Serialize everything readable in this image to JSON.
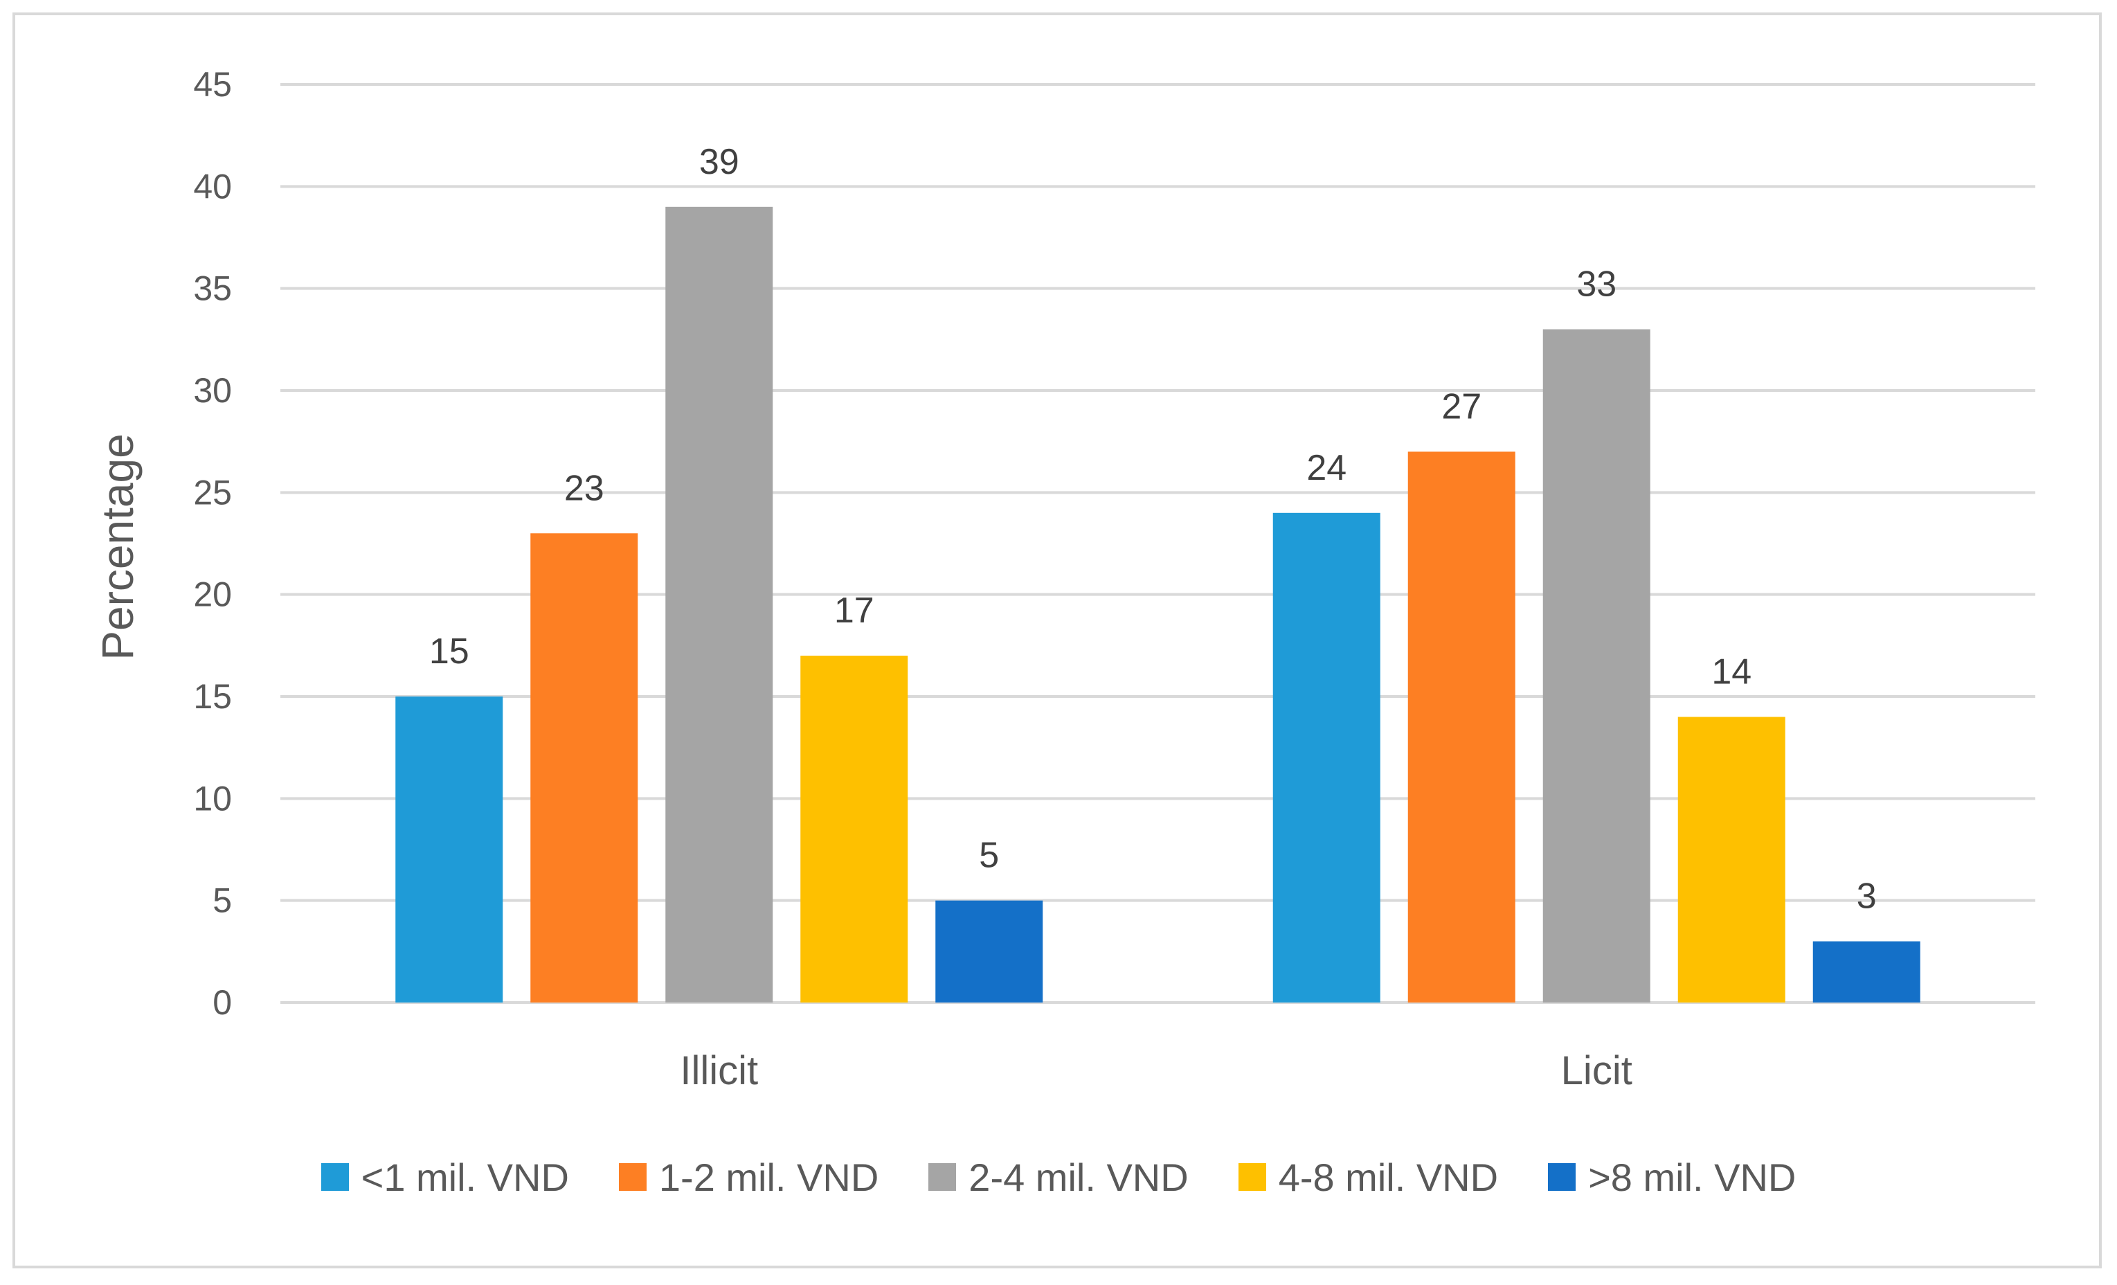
{
  "chart_data": {
    "type": "bar",
    "title": "",
    "xlabel": "",
    "ylabel": "Percentage",
    "ylim": [
      0,
      45
    ],
    "yticks": [
      0,
      5,
      10,
      15,
      20,
      25,
      30,
      35,
      40,
      45
    ],
    "grid": true,
    "legend_position": "bottom",
    "categories": [
      "Illicit",
      "Licit"
    ],
    "series": [
      {
        "name": "<1 mil. VND",
        "color": "#1f9bd7",
        "values": [
          15,
          24
        ]
      },
      {
        "name": "1-2 mil. VND",
        "color": "#fd7f23",
        "values": [
          23,
          27
        ]
      },
      {
        "name": "2-4 mil. VND",
        "color": "#a5a5a5",
        "values": [
          39,
          33
        ]
      },
      {
        "name": "4-8 mil. VND",
        "color": "#fec000",
        "values": [
          17,
          14
        ]
      },
      {
        "name": ">8 mil. VND",
        "color": "#1470c8",
        "values": [
          5,
          3
        ]
      }
    ]
  }
}
